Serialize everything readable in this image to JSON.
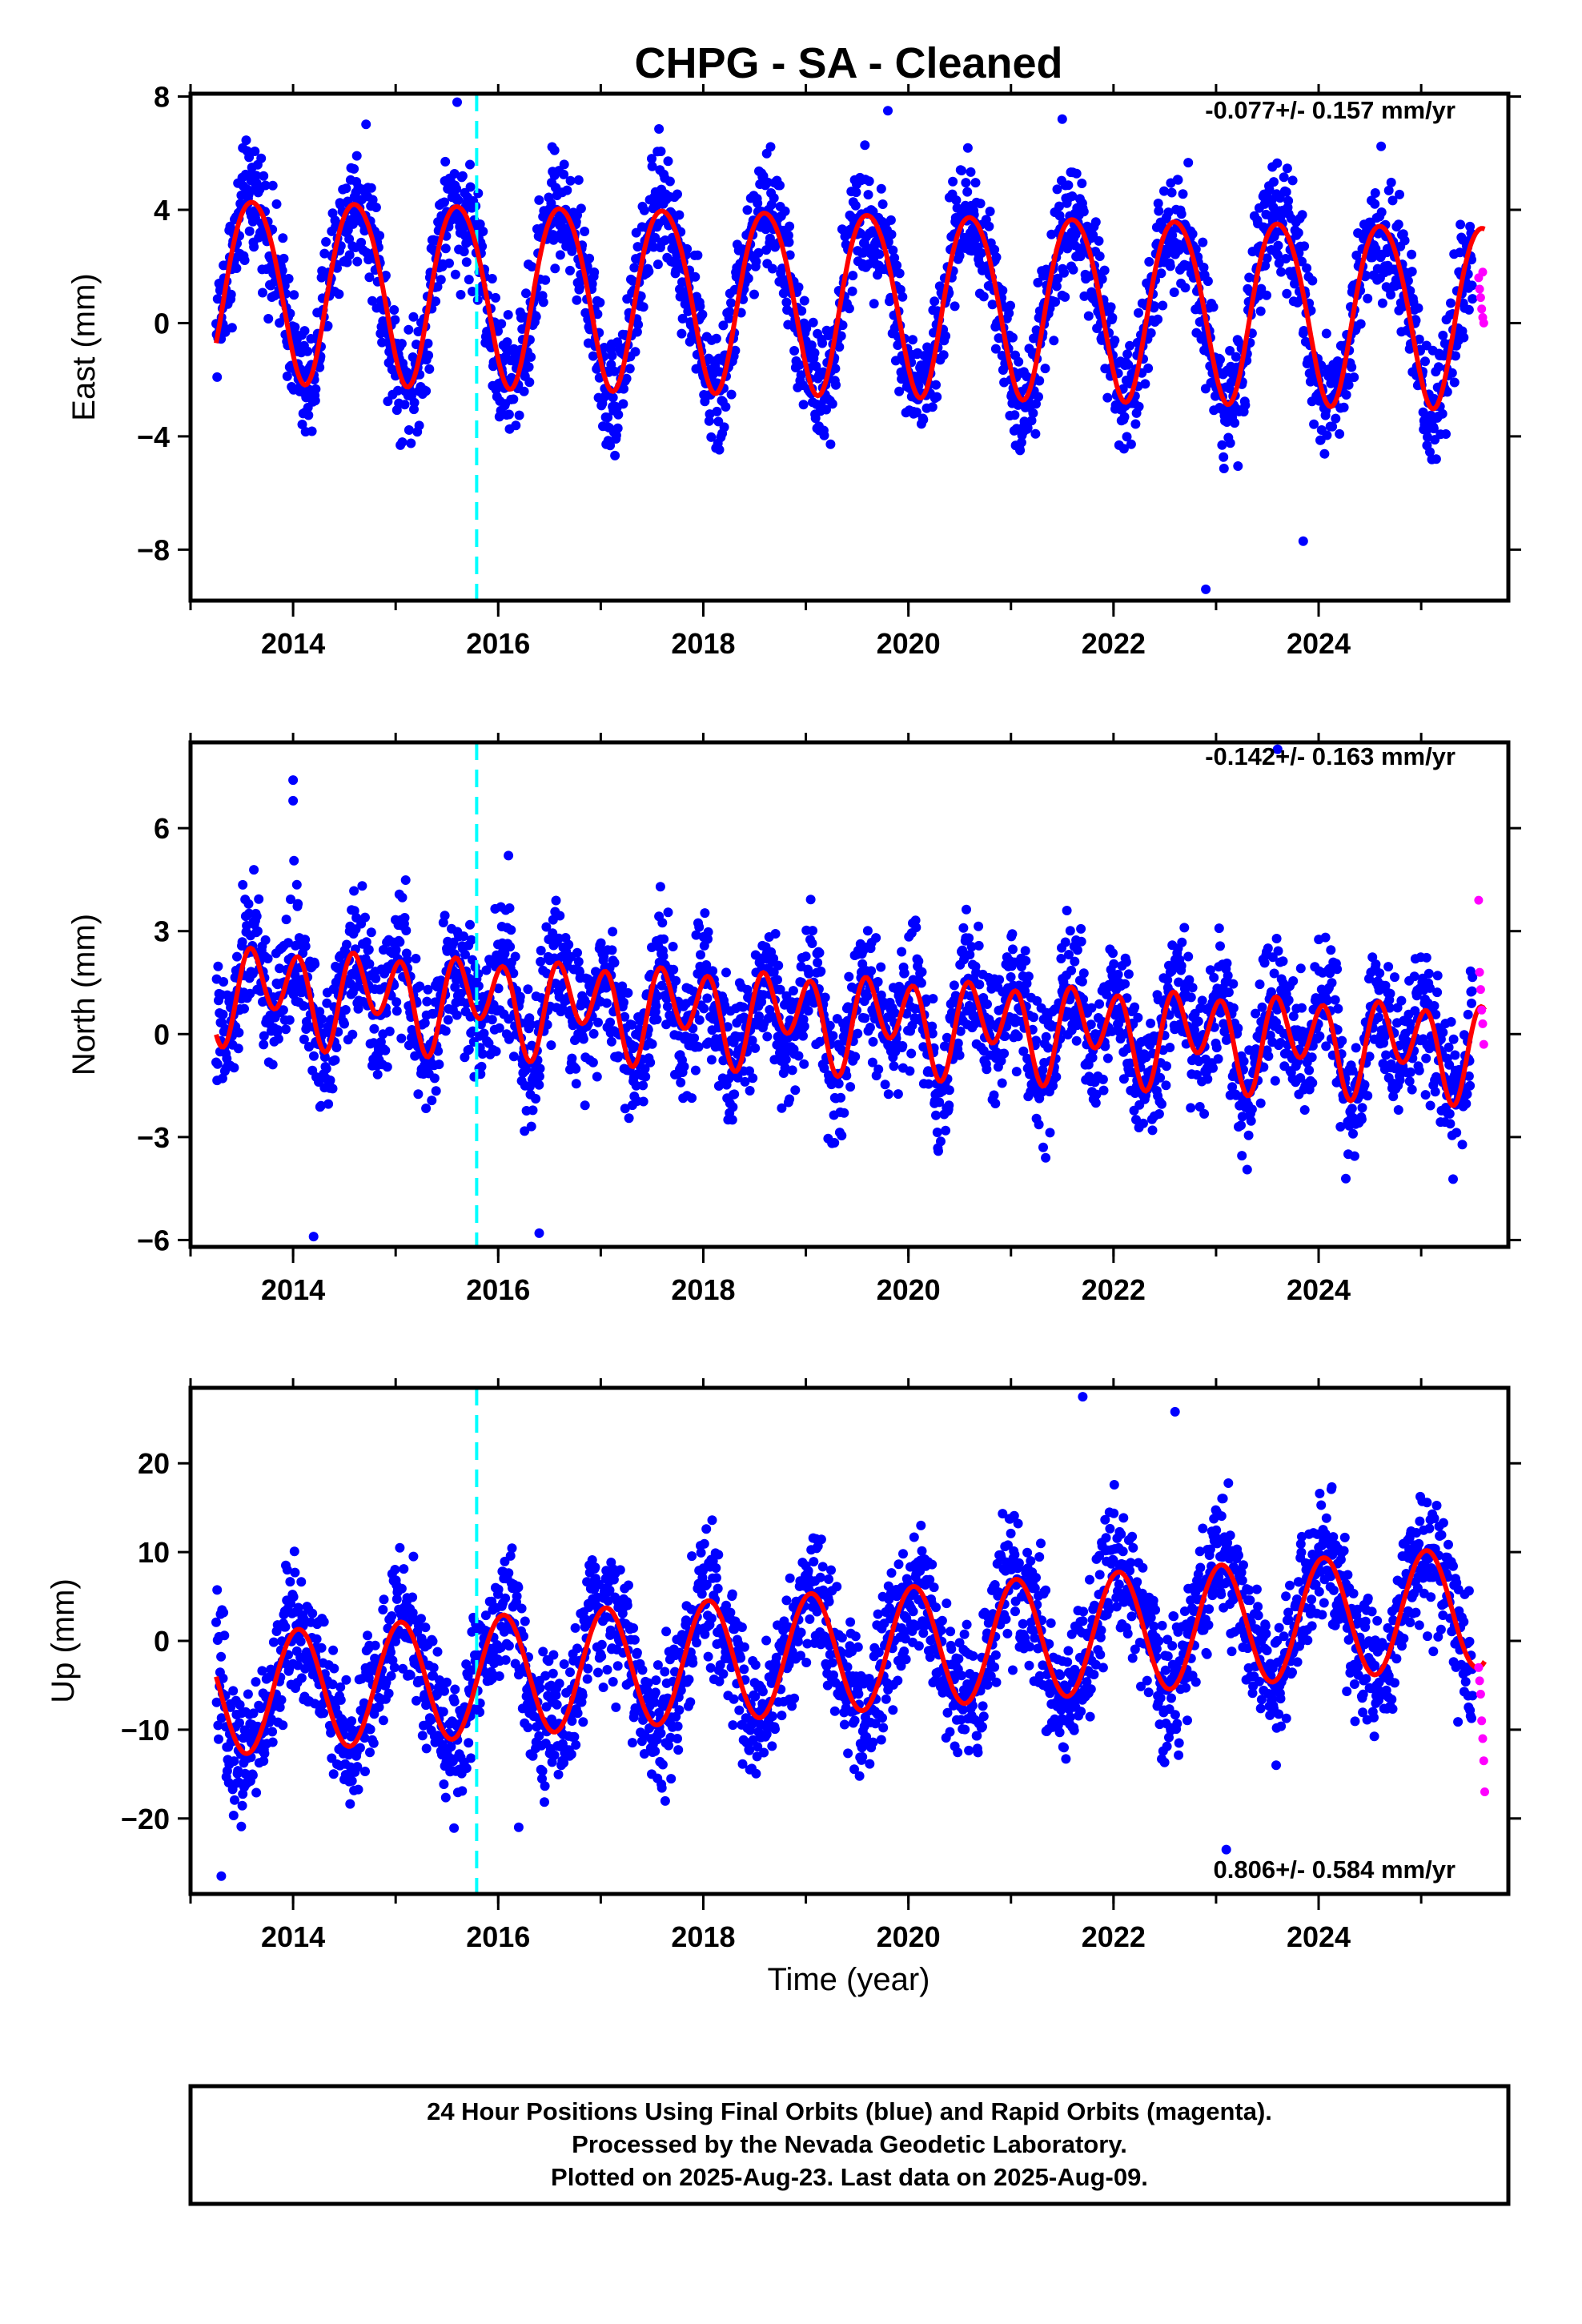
{
  "title": "CHPG  - SA - Cleaned",
  "xlabel": "Time (year)",
  "footer": {
    "line1": "24 Hour Positions Using Final Orbits (blue) and Rapid Orbits (magenta).",
    "line2": "Processed by the Nevada Geodetic Laboratory.",
    "line3": "Plotted on 2025-Aug-23. Last data on 2025-Aug-09."
  },
  "colors": {
    "final_orbits": "#0000ff",
    "rapid_orbits": "#ff00ff",
    "model_fit": "#ff0000",
    "equipment_change": "#00ffff"
  },
  "chart_data": [
    {
      "type": "scatter",
      "panel": "east",
      "ylabel": "East (mm)",
      "rate_label": "-0.077+/- 0.157 mm/yr",
      "xlim": [
        2013.0,
        2025.85
      ],
      "ylim": [
        -9.8,
        8.1
      ],
      "yticks": [
        8,
        4,
        0,
        -4,
        -8
      ],
      "ytick_labels": [
        "8",
        "4",
        "0",
        "−4",
        "−8"
      ],
      "xticks": [
        2014,
        2016,
        2018,
        2020,
        2022,
        2024
      ],
      "xtick_labels": [
        "2014",
        "2016",
        "2018",
        "2020",
        "2022",
        "2024"
      ],
      "equipment_change_year": 2015.79,
      "series": [
        {
          "name": "Final orbits",
          "kind": "scatter",
          "color": "#0000ff",
          "data_start": 2013.25,
          "data_end": 2025.5,
          "amp": 3.2,
          "phase": 0.36,
          "semi_amp": 0.3,
          "offset": 0.9,
          "trend": -0.077,
          "noise": 1.3,
          "outliers": [
            [
              2015.6,
              7.8
            ],
            [
              2016.55,
              6.1
            ],
            [
              2019.8,
              7.5
            ],
            [
              2021.5,
              7.2
            ],
            [
              2022.9,
              -9.4
            ],
            [
              2023.85,
              -7.7
            ]
          ]
        },
        {
          "name": "Rapid orbits",
          "kind": "scatter",
          "color": "#ff00ff",
          "x": [
            2025.56,
            2025.57,
            2025.58,
            2025.59,
            2025.6,
            2025.6,
            2025.61
          ],
          "y": [
            1.6,
            1.2,
            0.9,
            0.5,
            0.2,
            1.8,
            0.0
          ]
        },
        {
          "name": "Model",
          "kind": "line",
          "color": "#ff0000"
        }
      ]
    },
    {
      "type": "scatter",
      "panel": "north",
      "ylabel": "North (mm)",
      "rate_label": "-0.142+/- 0.163 mm/yr",
      "xlim": [
        2013.0,
        2025.85
      ],
      "ylim": [
        -6.2,
        8.5
      ],
      "yticks": [
        6,
        3,
        0,
        -3,
        -6
      ],
      "ytick_labels": [
        "6",
        "3",
        "0",
        "−3",
        "−6"
      ],
      "xticks": [
        2014,
        2016,
        2018,
        2020,
        2022,
        2024
      ],
      "xtick_labels": [
        "2014",
        "2016",
        "2018",
        "2020",
        "2022",
        "2024"
      ],
      "equipment_change_year": 2015.79,
      "series": [
        {
          "name": "Final orbits",
          "kind": "scatter",
          "color": "#0000ff",
          "data_start": 2013.25,
          "data_end": 2025.5,
          "amp": 0.6,
          "phase": 0.54,
          "semi_amp": 1.1,
          "offset": 0.45,
          "trend": -0.142,
          "noise": 1.2,
          "outliers": [
            [
              2014.0,
              7.4
            ],
            [
              2014.0,
              6.8
            ],
            [
              2016.1,
              5.2
            ],
            [
              2016.4,
              -5.8
            ],
            [
              2023.6,
              8.3
            ],
            [
              2014.2,
              -5.9
            ]
          ]
        },
        {
          "name": "Rapid orbits",
          "kind": "scatter",
          "color": "#ff00ff",
          "x": [
            2025.56,
            2025.57,
            2025.58,
            2025.59,
            2025.6,
            2025.61
          ],
          "y": [
            3.9,
            1.8,
            1.3,
            0.7,
            0.3,
            -0.3
          ]
        },
        {
          "name": "Model",
          "kind": "line",
          "color": "#ff0000"
        }
      ]
    },
    {
      "type": "scatter",
      "panel": "up",
      "ylabel": "Up (mm)",
      "rate_label": "0.806+/- 0.584 mm/yr",
      "xlim": [
        2013.0,
        2025.85
      ],
      "ylim": [
        -28.5,
        28.5
      ],
      "yticks": [
        20,
        10,
        0,
        -10,
        -20
      ],
      "ytick_labels": [
        "20",
        "10",
        "0",
        "−10",
        "−20"
      ],
      "xticks": [
        2014,
        2016,
        2018,
        2020,
        2022,
        2024
      ],
      "xtick_labels": [
        "2014",
        "2016",
        "2018",
        "2020",
        "2022",
        "2024"
      ],
      "equipment_change_year": 2015.79,
      "series": [
        {
          "name": "Final orbits",
          "kind": "scatter",
          "color": "#0000ff",
          "data_start": 2013.25,
          "data_end": 2025.5,
          "amp": 6.8,
          "phase": 0.8,
          "semi_amp": 0.0,
          "offset": -1.2,
          "trend": 0.806,
          "noise": 4.6,
          "outliers": [
            [
              2013.3,
              -26.5
            ],
            [
              2021.7,
              27.5
            ],
            [
              2022.6,
              25.8
            ],
            [
              2023.1,
              -23.5
            ],
            [
              2016.2,
              -21.0
            ]
          ]
        },
        {
          "name": "Rapid orbits",
          "kind": "scatter",
          "color": "#ff00ff",
          "x": [
            2025.56,
            2025.57,
            2025.58,
            2025.59,
            2025.6,
            2025.61,
            2025.62
          ],
          "y": [
            -3.0,
            -4.5,
            -6.0,
            -9.0,
            -11.0,
            -13.5,
            -17.0
          ]
        },
        {
          "name": "Model",
          "kind": "line",
          "color": "#ff0000"
        }
      ]
    }
  ]
}
